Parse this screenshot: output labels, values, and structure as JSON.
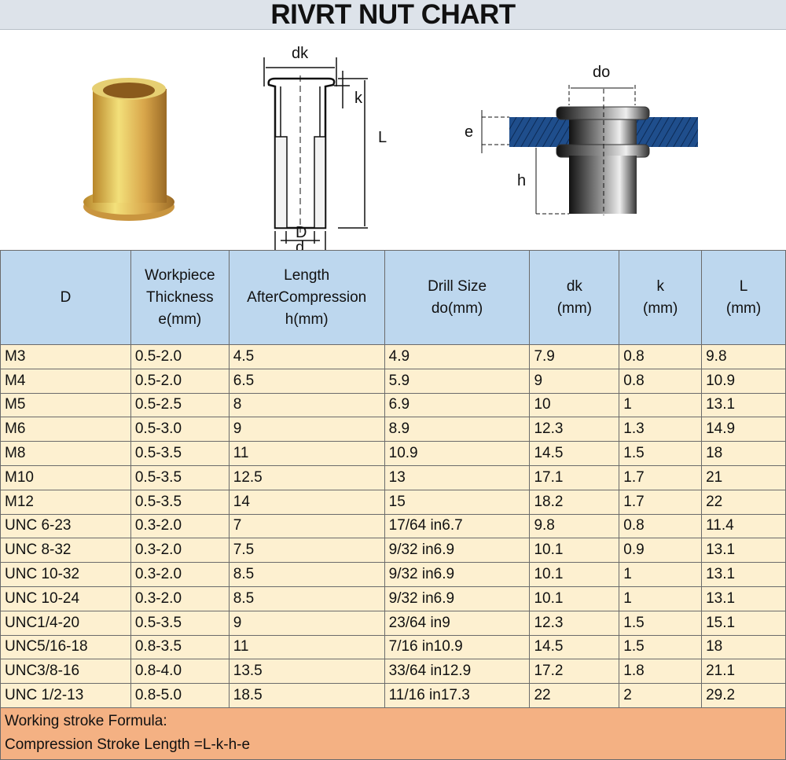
{
  "title": "RIVRT NUT CHART",
  "diagram_labels": {
    "dk": "dk",
    "k": "k",
    "L": "L",
    "D": "D",
    "d": "d",
    "do": "do",
    "e": "e",
    "h": "h"
  },
  "headers": [
    "D",
    "Workpiece Thickness e(mm)",
    "Length AfterCompression h(mm)",
    "Drill Size do(mm)",
    "dk (mm)",
    "k (mm)",
    "L (mm)"
  ],
  "header_lines": [
    [
      "D"
    ],
    [
      "Workpiece",
      "Thickness",
      "e(mm)"
    ],
    [
      "Length",
      "AfterCompression",
      "h(mm)"
    ],
    [
      "Drill Size",
      "do(mm)"
    ],
    [
      "dk",
      "(mm)"
    ],
    [
      "k",
      "(mm)"
    ],
    [
      "L",
      "(mm)"
    ]
  ],
  "rows": [
    [
      "M3",
      "0.5-2.0",
      "4.5",
      "4.9",
      "7.9",
      "0.8",
      "9.8"
    ],
    [
      "M4",
      "0.5-2.0",
      "6.5",
      "5.9",
      "9",
      "0.8",
      "10.9"
    ],
    [
      "M5",
      "0.5-2.5",
      "8",
      "6.9",
      "10",
      "1",
      "13.1"
    ],
    [
      "M6",
      "0.5-3.0",
      "9",
      "8.9",
      "12.3",
      "1.3",
      "14.9"
    ],
    [
      "M8",
      "0.5-3.5",
      "11",
      "10.9",
      "14.5",
      "1.5",
      "18"
    ],
    [
      "M10",
      "0.5-3.5",
      "12.5",
      "13",
      "17.1",
      "1.7",
      "21"
    ],
    [
      "M12",
      "0.5-3.5",
      "14",
      "15",
      "18.2",
      "1.7",
      "22"
    ],
    [
      "UNC 6-23",
      "0.3-2.0",
      "7",
      "17/64 in6.7",
      "9.8",
      "0.8",
      "11.4"
    ],
    [
      "UNC 8-32",
      "0.3-2.0",
      "7.5",
      "9/32 in6.9",
      "10.1",
      "0.9",
      "13.1"
    ],
    [
      "UNC 10-32",
      "0.3-2.0",
      "8.5",
      "9/32 in6.9",
      "10.1",
      "1",
      "13.1"
    ],
    [
      "UNC 10-24",
      "0.3-2.0",
      "8.5",
      "9/32 in6.9",
      "10.1",
      "1",
      "13.1"
    ],
    [
      "UNC1/4-20",
      "0.5-3.5",
      "9",
      "23/64 in9",
      "12.3",
      "1.5",
      "15.1"
    ],
    [
      "UNC5/16-18",
      "0.8-3.5",
      "11",
      "7/16 in10.9",
      "14.5",
      "1.5",
      "18"
    ],
    [
      "UNC3/8-16",
      "0.8-4.0",
      "13.5",
      "33/64 in12.9",
      "17.2",
      "1.8",
      "21.1"
    ],
    [
      "UNC 1/2-13",
      "0.8-5.0",
      "18.5",
      "11/16 in17.3",
      "22",
      "2",
      "29.2"
    ]
  ],
  "footer": {
    "line1": "Working stroke Formula:",
    "line2": "Compression Stroke Length =L-k-h-e"
  },
  "colors": {
    "title_bg": "#dde3ea",
    "header_bg": "#bdd7ee",
    "row_bg": "#fdf0d0",
    "footer_bg": "#f4b183",
    "plate": "#1f4e8c"
  }
}
